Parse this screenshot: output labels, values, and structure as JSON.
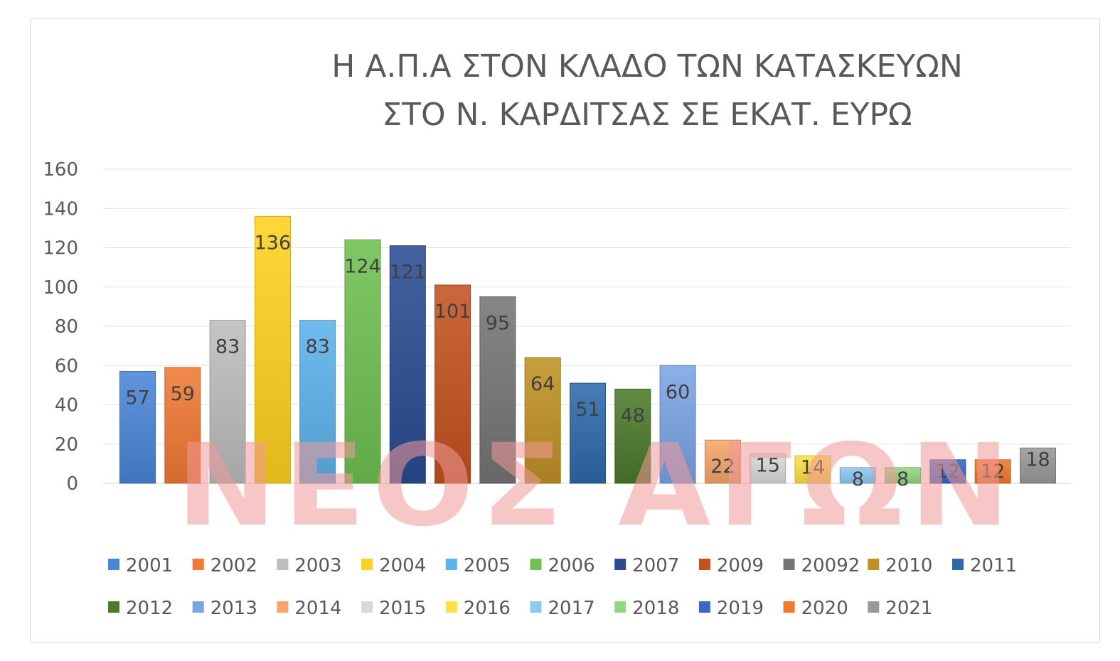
{
  "chart_data": {
    "type": "bar",
    "title_lines": [
      "Η Α.Π.Α ΣΤΟΝ ΚΛΑΔΟ ΤΩΝ ΚΑΤΑΣΚΕΥΩΝ",
      "ΣΤΟ Ν. ΚΑΡΔΙΤΣΑΣ ΣΕ ΕΚΑΤ. ΕΥΡΩ"
    ],
    "categories": [
      "2001",
      "2002",
      "2003",
      "2004",
      "2005",
      "2006",
      "2007",
      "2009",
      "20092",
      "2010",
      "2011",
      "2012",
      "2013",
      "2014",
      "2015",
      "2016",
      "2017",
      "2018",
      "2019",
      "2020",
      "2021"
    ],
    "values": [
      57,
      59,
      83,
      136,
      83,
      124,
      121,
      101,
      95,
      64,
      51,
      48,
      60,
      22,
      15,
      14,
      8,
      8,
      12,
      12,
      18
    ],
    "colors": [
      "#4a86d8",
      "#f07a35",
      "#bdbdbd",
      "#ffd21f",
      "#5cb2ea",
      "#6fc151",
      "#2a4c93",
      "#c4521f",
      "#757575",
      "#c09225",
      "#2e6aaa",
      "#4c7a2a",
      "#7aa4e6",
      "#f6a66a",
      "#d9d9d9",
      "#ffe046",
      "#8ccbf1",
      "#94d783",
      "#3a67c8",
      "#f07c2b",
      "#999999"
    ],
    "ylim": [
      0,
      160
    ],
    "yticks": [
      0,
      20,
      40,
      60,
      80,
      100,
      120,
      140,
      160
    ],
    "grid": true,
    "legend_position": "bottom",
    "watermark": "ΝΕΟΣ ΑΓΩΝ"
  }
}
